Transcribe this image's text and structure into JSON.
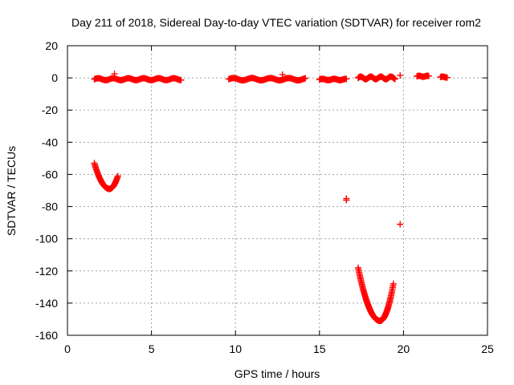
{
  "chart_data": {
    "type": "scatter",
    "title": "Day 211 of 2018, Sidereal Day-to-day VTEC variation (SDTVAR) for receiver rom2",
    "xlabel": "GPS time / hours",
    "ylabel": "SDTVAR / TECUs",
    "xlim": [
      0,
      25
    ],
    "ylim": [
      -160,
      20
    ],
    "xticks": [
      0,
      5,
      10,
      15,
      20,
      25
    ],
    "yticks": [
      -160,
      -140,
      -120,
      -100,
      -80,
      -60,
      -40,
      -20,
      0,
      20
    ],
    "grid": true,
    "marker": "plus",
    "color": "#ff0000",
    "segments": [
      {
        "name": "near-zero-1",
        "x_start": 1.6,
        "x_end": 6.8,
        "step": 0.06,
        "base": -0.8,
        "amp": 0.6,
        "period": 0.9
      },
      {
        "name": "near-zero-2",
        "x_start": 9.6,
        "x_end": 14.2,
        "step": 0.06,
        "base": -0.8,
        "amp": 0.7,
        "period": 1.1
      },
      {
        "name": "near-zero-3",
        "x_start": 15.0,
        "x_end": 16.6,
        "step": 0.05,
        "base": -1.0,
        "amp": 0.4,
        "period": 0.7
      },
      {
        "name": "near-zero-4",
        "x_start": 17.3,
        "x_end": 19.5,
        "step": 0.04,
        "base": 0.0,
        "amp": 0.8,
        "period": 0.6
      },
      {
        "name": "near-zero-5",
        "x_start": 20.8,
        "x_end": 21.5,
        "step": 0.05,
        "base": 1.0,
        "amp": 0.3,
        "period": 0.5
      },
      {
        "name": "near-zero-6",
        "x_start": 22.2,
        "x_end": 22.6,
        "step": 0.05,
        "base": 0.5,
        "amp": 0.3,
        "period": 0.5
      }
    ],
    "arcs": [
      {
        "name": "dip-1",
        "x_start": 1.6,
        "x_min": 2.5,
        "x_end": 3.0,
        "y_start": -53,
        "y_min": -69,
        "y_end": -61,
        "step": 0.025
      },
      {
        "name": "dip-2",
        "x_start": 17.3,
        "x_min": 18.6,
        "x_end": 19.4,
        "y_start": -118,
        "y_min": -151,
        "y_end": -128,
        "step": 0.02
      }
    ],
    "points": [
      {
        "x": 2.8,
        "y": 2.5
      },
      {
        "x": 12.8,
        "y": 2.0
      },
      {
        "x": 16.6,
        "y": -75
      },
      {
        "x": 16.6,
        "y": -76
      },
      {
        "x": 19.8,
        "y": -91
      },
      {
        "x": 19.8,
        "y": 1.5
      }
    ]
  }
}
